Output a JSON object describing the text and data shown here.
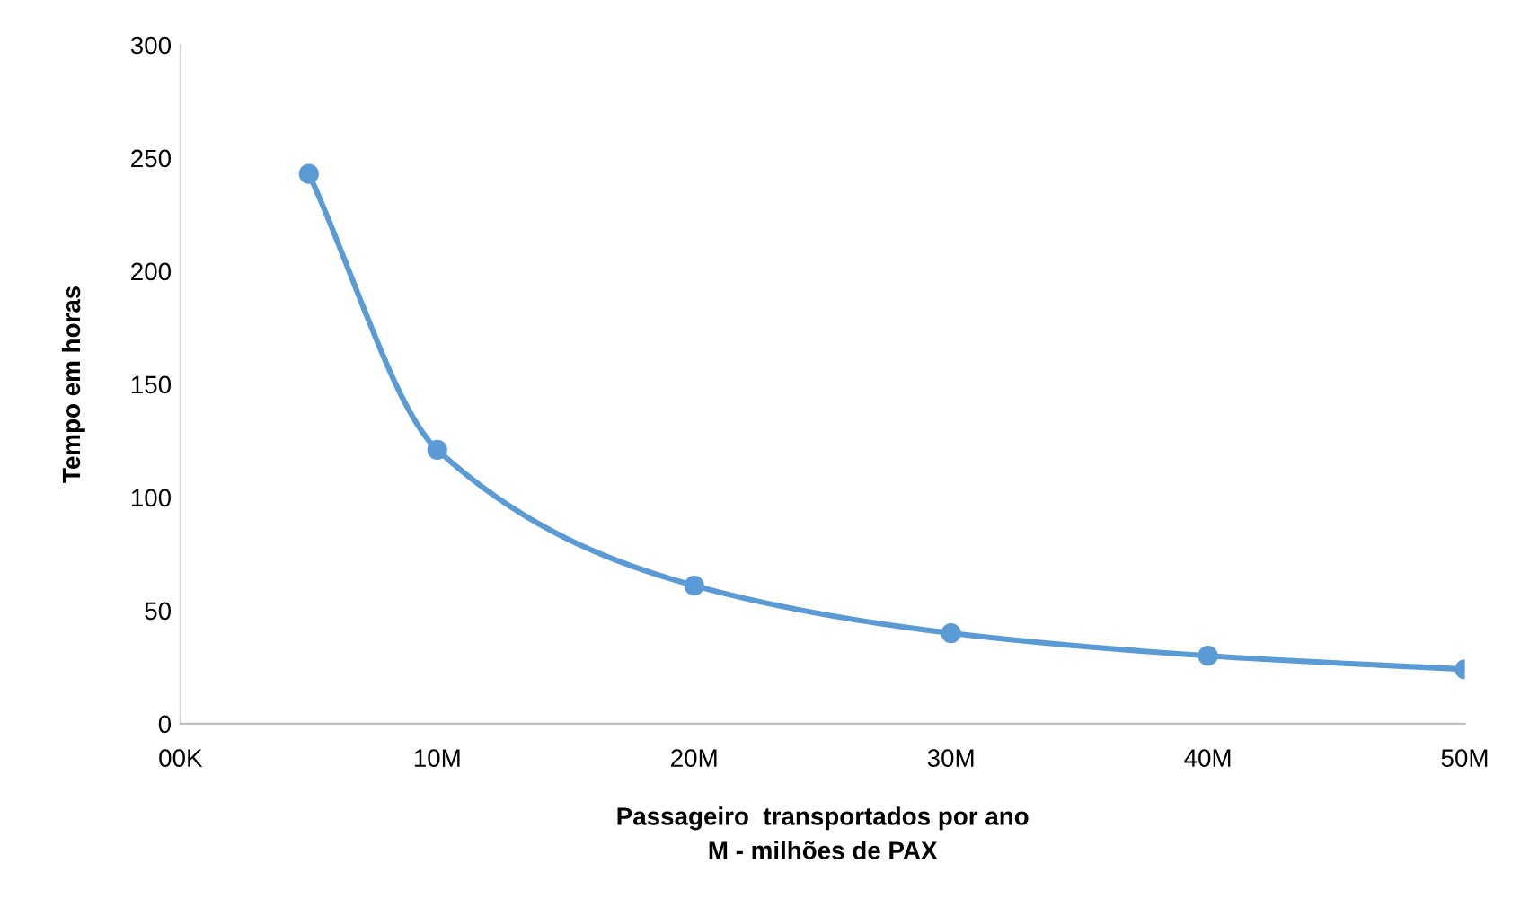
{
  "chart_data": {
    "type": "line",
    "xlabel": "Passageiro  transportados por ano\nM - milhões de PAX",
    "ylabel": "Tempo em horas",
    "x": [
      5,
      10,
      20,
      30,
      40,
      50
    ],
    "series": [
      {
        "color": "#5b9bd5",
        "values": [
          243,
          121,
          61,
          40,
          30,
          24
        ]
      }
    ],
    "xlim": [
      0,
      50
    ],
    "xticks": [
      {
        "value": 0,
        "label": "00K"
      },
      {
        "value": 10,
        "label": "10M"
      },
      {
        "value": 20,
        "label": "20M"
      },
      {
        "value": 30,
        "label": "30M"
      },
      {
        "value": 40,
        "label": "40M"
      },
      {
        "value": 50,
        "label": "50M"
      }
    ],
    "ylim": [
      0,
      300
    ],
    "yticks": [
      0,
      50,
      100,
      150,
      200,
      250,
      300
    ],
    "marker": "circle",
    "line_style": "solid",
    "grid": false,
    "legend": false
  }
}
